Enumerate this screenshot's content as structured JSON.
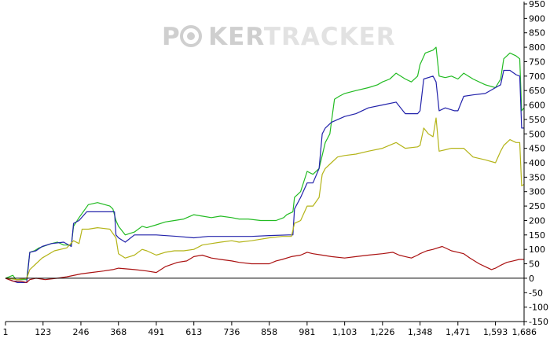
{
  "watermark": {
    "part1": "P",
    "part2": "KER",
    "part3": "TRACKER"
  },
  "colors": {
    "green": "#22bb22",
    "blue": "#2222aa",
    "olive": "#b4b418",
    "red": "#aa1111",
    "axis": "#000000",
    "watermark": "#cfcfcf",
    "watermark_light": "#e2e2e2"
  },
  "chart_data": {
    "type": "line",
    "title": "",
    "xlabel": "",
    "ylabel": "",
    "xlim": [
      1,
      1686
    ],
    "ylim": [
      -150,
      950
    ],
    "x_ticks": [
      1,
      123,
      246,
      368,
      491,
      613,
      736,
      858,
      981,
      1103,
      1226,
      1348,
      1471,
      1593,
      1686
    ],
    "x_tick_labels": [
      "1",
      "123",
      "246",
      "368",
      "491",
      "613",
      "736",
      "858",
      "981",
      "1,103",
      "1,226",
      "1,348",
      "1,471",
      "1,593",
      "1,686"
    ],
    "y_ticks": [
      -150,
      -100,
      -50,
      0,
      50,
      100,
      150,
      200,
      250,
      300,
      350,
      400,
      450,
      500,
      550,
      600,
      650,
      700,
      750,
      800,
      850,
      900,
      950
    ],
    "grid": false,
    "legend": "none",
    "series": [
      {
        "color": "green",
        "points": [
          [
            1,
            0
          ],
          [
            25,
            10
          ],
          [
            35,
            -5
          ],
          [
            70,
            -5
          ],
          [
            80,
            90
          ],
          [
            95,
            95
          ],
          [
            110,
            105
          ],
          [
            150,
            120
          ],
          [
            170,
            125
          ],
          [
            190,
            115
          ],
          [
            215,
            115
          ],
          [
            222,
            180
          ],
          [
            240,
            210
          ],
          [
            270,
            255
          ],
          [
            300,
            262
          ],
          [
            340,
            250
          ],
          [
            350,
            240
          ],
          [
            360,
            200
          ],
          [
            368,
            180
          ],
          [
            390,
            150
          ],
          [
            420,
            160
          ],
          [
            445,
            180
          ],
          [
            460,
            175
          ],
          [
            491,
            185
          ],
          [
            520,
            195
          ],
          [
            550,
            200
          ],
          [
            580,
            205
          ],
          [
            613,
            220
          ],
          [
            640,
            215
          ],
          [
            670,
            210
          ],
          [
            700,
            215
          ],
          [
            736,
            210
          ],
          [
            760,
            205
          ],
          [
            790,
            205
          ],
          [
            830,
            200
          ],
          [
            858,
            200
          ],
          [
            880,
            200
          ],
          [
            905,
            210
          ],
          [
            915,
            220
          ],
          [
            935,
            230
          ],
          [
            940,
            280
          ],
          [
            960,
            300
          ],
          [
            981,
            370
          ],
          [
            1000,
            360
          ],
          [
            1020,
            380
          ],
          [
            1040,
            470
          ],
          [
            1055,
            500
          ],
          [
            1070,
            620
          ],
          [
            1085,
            630
          ],
          [
            1103,
            640
          ],
          [
            1140,
            650
          ],
          [
            1180,
            660
          ],
          [
            1210,
            670
          ],
          [
            1226,
            680
          ],
          [
            1250,
            690
          ],
          [
            1270,
            710
          ],
          [
            1300,
            690
          ],
          [
            1320,
            680
          ],
          [
            1340,
            700
          ],
          [
            1348,
            740
          ],
          [
            1365,
            780
          ],
          [
            1390,
            790
          ],
          [
            1400,
            800
          ],
          [
            1410,
            700
          ],
          [
            1430,
            695
          ],
          [
            1450,
            700
          ],
          [
            1471,
            690
          ],
          [
            1490,
            710
          ],
          [
            1520,
            690
          ],
          [
            1560,
            670
          ],
          [
            1593,
            660
          ],
          [
            1610,
            690
          ],
          [
            1620,
            760
          ],
          [
            1640,
            780
          ],
          [
            1660,
            770
          ],
          [
            1672,
            760
          ],
          [
            1678,
            580
          ],
          [
            1686,
            590
          ]
        ]
      },
      {
        "color": "blue",
        "points": [
          [
            1,
            0
          ],
          [
            40,
            -15
          ],
          [
            70,
            -15
          ],
          [
            80,
            90
          ],
          [
            100,
            95
          ],
          [
            120,
            110
          ],
          [
            150,
            120
          ],
          [
            190,
            125
          ],
          [
            215,
            110
          ],
          [
            222,
            190
          ],
          [
            240,
            200
          ],
          [
            265,
            230
          ],
          [
            300,
            230
          ],
          [
            340,
            230
          ],
          [
            355,
            230
          ],
          [
            360,
            150
          ],
          [
            368,
            140
          ],
          [
            390,
            125
          ],
          [
            420,
            150
          ],
          [
            460,
            150
          ],
          [
            491,
            150
          ],
          [
            560,
            145
          ],
          [
            613,
            140
          ],
          [
            660,
            145
          ],
          [
            736,
            145
          ],
          [
            800,
            145
          ],
          [
            858,
            148
          ],
          [
            920,
            150
          ],
          [
            935,
            150
          ],
          [
            940,
            240
          ],
          [
            960,
            280
          ],
          [
            981,
            330
          ],
          [
            1000,
            330
          ],
          [
            1020,
            380
          ],
          [
            1030,
            500
          ],
          [
            1040,
            520
          ],
          [
            1060,
            540
          ],
          [
            1103,
            560
          ],
          [
            1140,
            570
          ],
          [
            1180,
            590
          ],
          [
            1226,
            600
          ],
          [
            1270,
            610
          ],
          [
            1300,
            570
          ],
          [
            1340,
            570
          ],
          [
            1348,
            580
          ],
          [
            1360,
            690
          ],
          [
            1390,
            700
          ],
          [
            1400,
            680
          ],
          [
            1410,
            580
          ],
          [
            1430,
            590
          ],
          [
            1460,
            580
          ],
          [
            1471,
            580
          ],
          [
            1490,
            630
          ],
          [
            1520,
            635
          ],
          [
            1560,
            640
          ],
          [
            1593,
            660
          ],
          [
            1610,
            670
          ],
          [
            1620,
            720
          ],
          [
            1640,
            720
          ],
          [
            1660,
            705
          ],
          [
            1672,
            700
          ],
          [
            1678,
            520
          ],
          [
            1686,
            520
          ]
        ]
      },
      {
        "color": "olive",
        "points": [
          [
            1,
            0
          ],
          [
            40,
            -5
          ],
          [
            70,
            0
          ],
          [
            80,
            30
          ],
          [
            100,
            50
          ],
          [
            120,
            70
          ],
          [
            160,
            95
          ],
          [
            200,
            105
          ],
          [
            222,
            130
          ],
          [
            240,
            120
          ],
          [
            250,
            170
          ],
          [
            270,
            170
          ],
          [
            300,
            175
          ],
          [
            340,
            170
          ],
          [
            360,
            140
          ],
          [
            368,
            85
          ],
          [
            390,
            70
          ],
          [
            420,
            80
          ],
          [
            445,
            100
          ],
          [
            460,
            95
          ],
          [
            491,
            80
          ],
          [
            520,
            90
          ],
          [
            550,
            95
          ],
          [
            580,
            95
          ],
          [
            613,
            100
          ],
          [
            640,
            115
          ],
          [
            670,
            120
          ],
          [
            700,
            125
          ],
          [
            736,
            130
          ],
          [
            760,
            125
          ],
          [
            800,
            130
          ],
          [
            858,
            140
          ],
          [
            900,
            145
          ],
          [
            930,
            145
          ],
          [
            940,
            190
          ],
          [
            960,
            200
          ],
          [
            981,
            250
          ],
          [
            1000,
            250
          ],
          [
            1020,
            280
          ],
          [
            1030,
            360
          ],
          [
            1040,
            380
          ],
          [
            1060,
            400
          ],
          [
            1080,
            420
          ],
          [
            1103,
            425
          ],
          [
            1140,
            430
          ],
          [
            1180,
            440
          ],
          [
            1226,
            450
          ],
          [
            1270,
            470
          ],
          [
            1300,
            450
          ],
          [
            1340,
            455
          ],
          [
            1348,
            460
          ],
          [
            1360,
            520
          ],
          [
            1375,
            500
          ],
          [
            1390,
            490
          ],
          [
            1400,
            555
          ],
          [
            1410,
            440
          ],
          [
            1430,
            445
          ],
          [
            1450,
            450
          ],
          [
            1471,
            450
          ],
          [
            1490,
            450
          ],
          [
            1520,
            420
          ],
          [
            1560,
            410
          ],
          [
            1593,
            400
          ],
          [
            1610,
            440
          ],
          [
            1620,
            460
          ],
          [
            1640,
            480
          ],
          [
            1660,
            470
          ],
          [
            1672,
            470
          ],
          [
            1678,
            320
          ],
          [
            1686,
            325
          ]
        ]
      },
      {
        "color": "red",
        "points": [
          [
            1,
            0
          ],
          [
            25,
            -10
          ],
          [
            50,
            -10
          ],
          [
            70,
            -15
          ],
          [
            80,
            -5
          ],
          [
            100,
            0
          ],
          [
            130,
            -5
          ],
          [
            170,
            0
          ],
          [
            200,
            5
          ],
          [
            246,
            15
          ],
          [
            280,
            20
          ],
          [
            320,
            25
          ],
          [
            350,
            30
          ],
          [
            368,
            35
          ],
          [
            420,
            30
          ],
          [
            460,
            25
          ],
          [
            491,
            20
          ],
          [
            520,
            40
          ],
          [
            560,
            55
          ],
          [
            590,
            60
          ],
          [
            613,
            75
          ],
          [
            640,
            80
          ],
          [
            670,
            70
          ],
          [
            700,
            65
          ],
          [
            736,
            60
          ],
          [
            760,
            55
          ],
          [
            800,
            50
          ],
          [
            830,
            50
          ],
          [
            858,
            50
          ],
          [
            880,
            60
          ],
          [
            900,
            65
          ],
          [
            930,
            75
          ],
          [
            960,
            80
          ],
          [
            981,
            90
          ],
          [
            1000,
            85
          ],
          [
            1030,
            80
          ],
          [
            1060,
            75
          ],
          [
            1103,
            70
          ],
          [
            1140,
            75
          ],
          [
            1180,
            80
          ],
          [
            1226,
            85
          ],
          [
            1260,
            90
          ],
          [
            1280,
            80
          ],
          [
            1300,
            75
          ],
          [
            1320,
            70
          ],
          [
            1340,
            80
          ],
          [
            1348,
            85
          ],
          [
            1370,
            95
          ],
          [
            1390,
            100
          ],
          [
            1420,
            110
          ],
          [
            1450,
            95
          ],
          [
            1471,
            90
          ],
          [
            1490,
            85
          ],
          [
            1510,
            70
          ],
          [
            1540,
            50
          ],
          [
            1560,
            40
          ],
          [
            1580,
            30
          ],
          [
            1593,
            35
          ],
          [
            1610,
            45
          ],
          [
            1630,
            55
          ],
          [
            1650,
            60
          ],
          [
            1670,
            65
          ],
          [
            1686,
            65
          ]
        ]
      }
    ]
  }
}
